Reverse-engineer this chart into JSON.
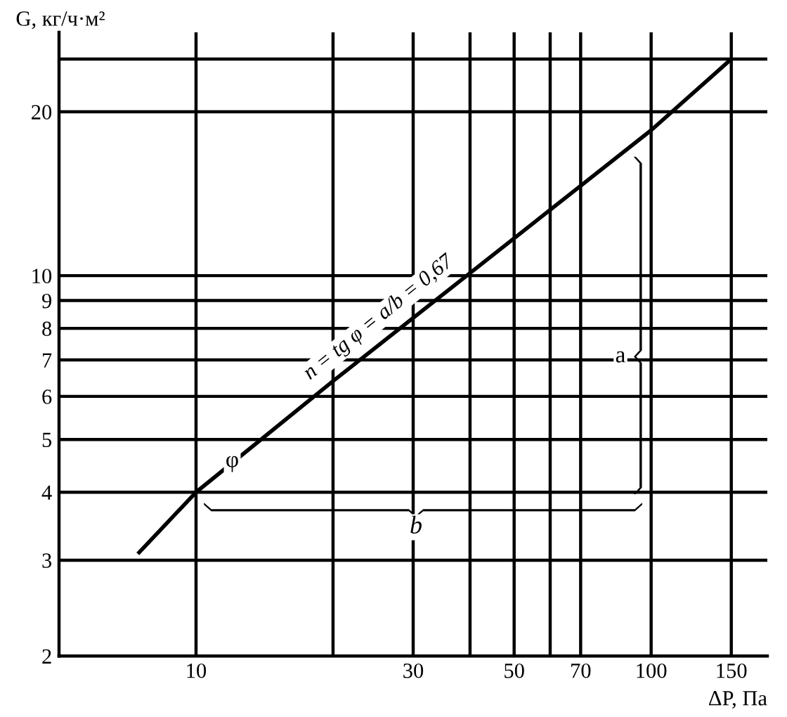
{
  "chart_data": {
    "type": "line",
    "xlabel": "ΔP, Па",
    "ylabel": "G, кг/ч·м²",
    "log": "xy",
    "xlim": [
      5,
      180
    ],
    "ylim": [
      2,
      28
    ],
    "xticks": [
      10,
      {
        "value": 20,
        "label": null
      },
      30,
      {
        "value": 40,
        "label": null
      },
      50,
      {
        "value": 60,
        "label": null
      },
      70,
      100,
      150
    ],
    "yticks": [
      2,
      3,
      4,
      5,
      6,
      7,
      8,
      9,
      10,
      20,
      {
        "value": 25,
        "label": null
      }
    ],
    "grid": true,
    "marker": "none",
    "line_style": "solid",
    "series": [
      {
        "color": "#000000",
        "x": [
          7.5,
          10,
          20,
          100,
          150
        ],
        "values": [
          3.1,
          4,
          6.4,
          18.5,
          25
        ]
      }
    ],
    "annotations": [
      "n = tg φ = a/b = 0,67",
      "φ",
      "a",
      "b"
    ]
  }
}
